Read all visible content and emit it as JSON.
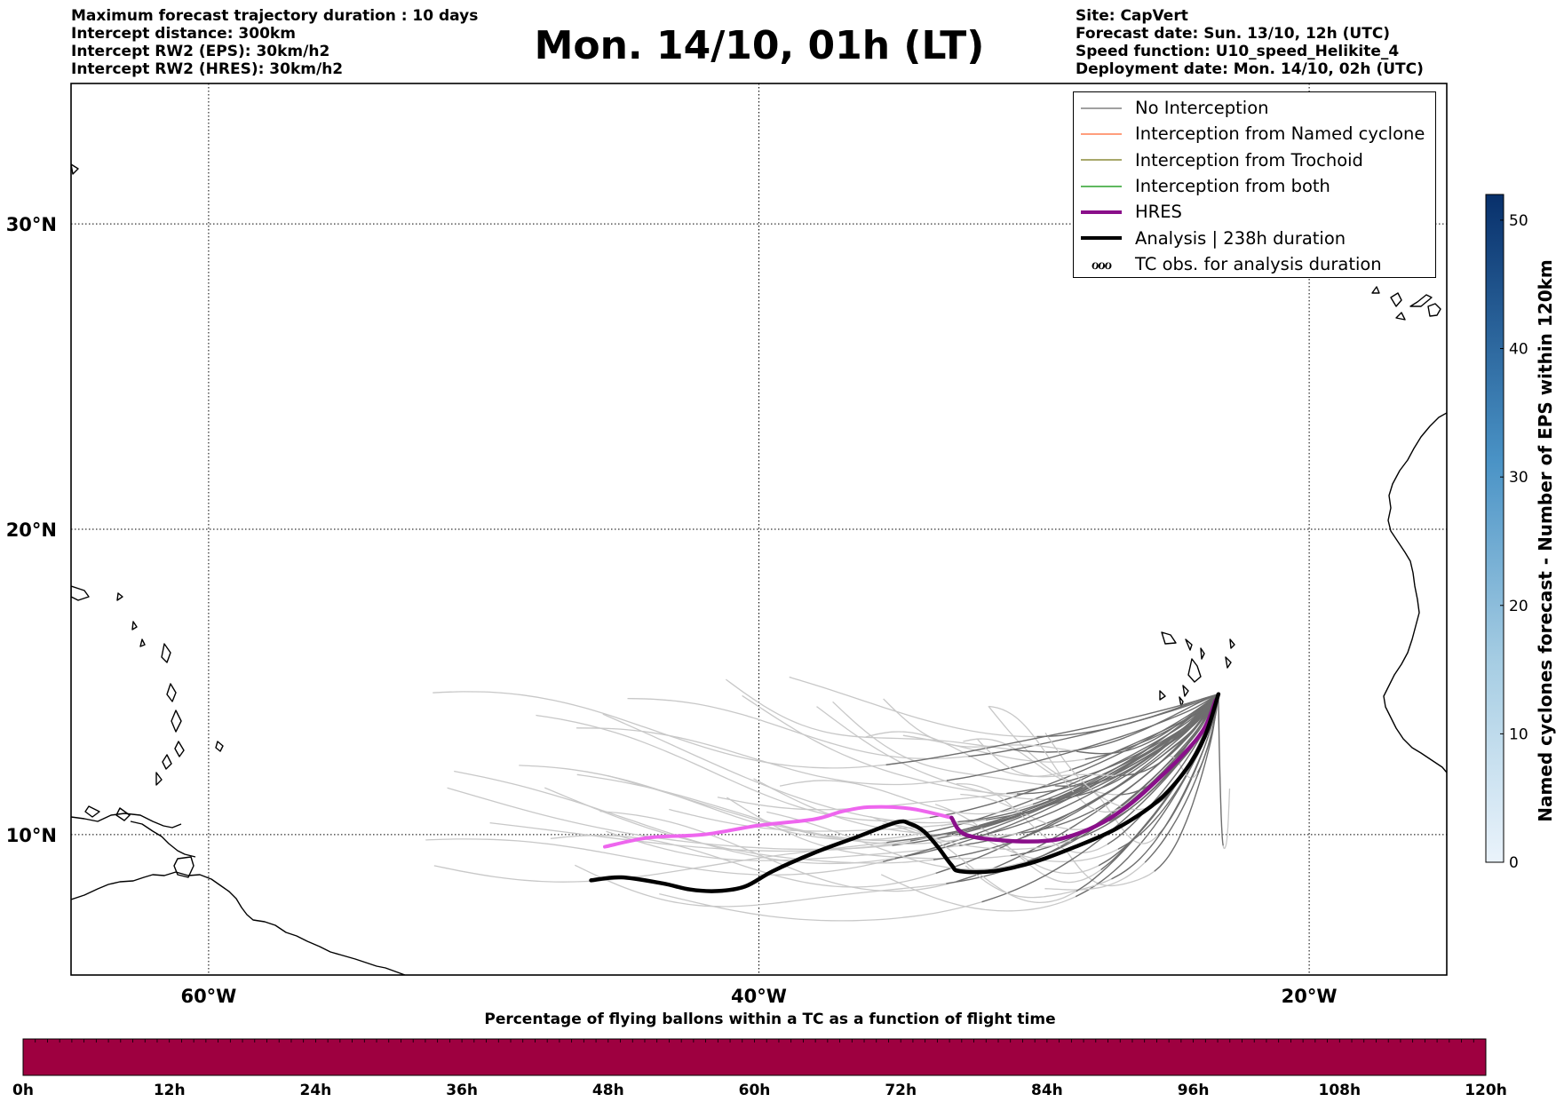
{
  "header": {
    "title": "Mon. 14/10, 01h (LT)",
    "left_lines": [
      "Maximum forecast trajectory duration : 10 days",
      "Intercept distance: 300km",
      "Intercept RW2 (EPS):  30km/h2",
      "Intercept RW2 (HRES): 30km/h2"
    ],
    "right_lines": [
      "Site: CapVert",
      "Forecast date: Sun. 13/10, 12h (UTC)",
      "Speed function: U10_speed_Helikite_4",
      "Deployment date: Mon. 14/10, 02h (UTC)"
    ]
  },
  "map": {
    "lon_range": [
      -65,
      -15
    ],
    "lat_range": [
      5.4,
      34.6
    ],
    "parallels": [
      10,
      20,
      30
    ],
    "meridians": [
      -60,
      -40,
      -20
    ],
    "lat_labels": [
      "10°N",
      "20°N",
      "30°N"
    ],
    "lon_labels": [
      "60°W",
      "40°W",
      "20°W"
    ],
    "land_color": "#000000",
    "hres_track": [
      [
        -45.6,
        9.6
      ],
      [
        -44,
        9.9
      ],
      [
        -42,
        10.0
      ],
      [
        -40,
        10.3
      ],
      [
        -38,
        10.5
      ],
      [
        -37,
        10.75
      ],
      [
        -36,
        10.9
      ],
      [
        -34.5,
        10.85
      ],
      [
        -33,
        10.55
      ],
      [
        -32.5,
        10.0
      ],
      [
        -31,
        9.8
      ],
      [
        -29.5,
        9.8
      ],
      [
        -28.5,
        10.0
      ],
      [
        -27.5,
        10.4
      ],
      [
        -26.5,
        11.0
      ],
      [
        -25.5,
        11.8
      ],
      [
        -24.5,
        12.7
      ],
      [
        -23.8,
        13.5
      ],
      [
        -23.4,
        14.4
      ]
    ],
    "analysis_track": [
      [
        -46.1,
        8.5
      ],
      [
        -45,
        8.6
      ],
      [
        -43.5,
        8.4
      ],
      [
        -42.5,
        8.2
      ],
      [
        -41.5,
        8.15
      ],
      [
        -40.5,
        8.3
      ],
      [
        -39.5,
        8.8
      ],
      [
        -38,
        9.4
      ],
      [
        -36.5,
        9.9
      ],
      [
        -35,
        10.4
      ],
      [
        -34.5,
        10.35
      ],
      [
        -34,
        10.1
      ],
      [
        -33.5,
        9.6
      ],
      [
        -33,
        9.0
      ],
      [
        -32.7,
        8.8
      ],
      [
        -31.5,
        8.8
      ],
      [
        -30,
        9.1
      ],
      [
        -28.5,
        9.6
      ],
      [
        -27,
        10.2
      ],
      [
        -25.5,
        11.1
      ],
      [
        -24.5,
        12.1
      ],
      [
        -23.8,
        13.2
      ],
      [
        -23.3,
        14.6
      ]
    ],
    "hres_color_segments": [
      [
        "#ee66ee",
        8
      ],
      [
        "#8a0f8a",
        18
      ]
    ]
  },
  "legend": {
    "items": [
      {
        "label": "No Interception",
        "color": "#808080",
        "kind": "thin"
      },
      {
        "label": "Interception from Named cyclone",
        "color": "#ff7f50",
        "kind": "thin"
      },
      {
        "label": "Interception from Trochoid",
        "color": "#8b8b3a",
        "kind": "thin"
      },
      {
        "label": "Interception from both",
        "color": "#2ca02c",
        "kind": "thin"
      },
      {
        "label": "HRES",
        "color": "#8a0f8a",
        "kind": "thick"
      },
      {
        "label": "Analysis | 238h duration",
        "color": "#000000",
        "kind": "thick"
      },
      {
        "label": "TC obs. for analysis duration",
        "color": "#000000",
        "kind": "glyph"
      }
    ]
  },
  "colorbar_right": {
    "label": "Named cyclones forecast - Number of EPS within 120km",
    "ticks": [
      "0",
      "10",
      "20",
      "30",
      "40",
      "50"
    ],
    "tick_values": [
      0,
      10,
      20,
      30,
      40,
      50
    ],
    "max": 52,
    "color_low": "#eaf3fb",
    "color_high": "#08306b"
  },
  "colorbar_bottom": {
    "title": "Percentage of flying ballons within a TC as a function of flight time",
    "ticks": [
      "0h",
      "12h",
      "24h",
      "36h",
      "48h",
      "60h",
      "72h",
      "84h",
      "96h",
      "108h",
      "120h"
    ],
    "color": "#9e0040"
  }
}
